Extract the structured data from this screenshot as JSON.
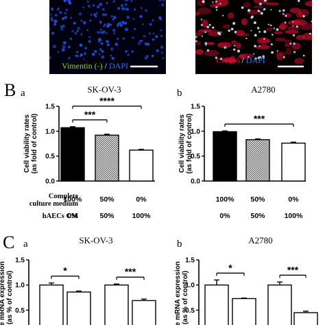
{
  "colors": {
    "dapi_blue": "#1e4fd8",
    "ck_red": "#c8102e",
    "vimentin_green": "#9bd22a",
    "black_bar": "#000000",
    "white_bar": "#ffffff",
    "hatch_bar": "#cfcfcf"
  },
  "panel_A": {
    "left_label_prefix": "Vimentin (-)",
    "left_label_sep": " / ",
    "left_label_suffix": "DAPI",
    "right_label_prefix": "CK",
    "right_label_mid": " (+)",
    "right_label_sep": " / ",
    "right_label_suffix": "DAPI"
  },
  "panel_B": {
    "letter": "B",
    "table_row1_label": [
      "Complete",
      "culture medium"
    ],
    "table_row2_label": "hAECs CM",
    "row1_values": [
      "100%",
      "50%",
      "0%"
    ],
    "row2_values": [
      "0%",
      "50%",
      "100%"
    ]
  },
  "panel_C": {
    "letter": "C"
  },
  "chart_data": [
    {
      "type": "bar",
      "sublabel": "a",
      "title": "SK-OV-3",
      "ylabel": [
        "Cell viability rates",
        "(as fold of control)"
      ],
      "ylim": [
        0,
        1.5
      ],
      "yticks": [
        "0.0",
        "0.5",
        "1.0",
        "1.5"
      ],
      "categories": [
        "100% / 0%",
        "50% / 50%",
        "0% / 100%"
      ],
      "values": [
        1.07,
        0.92,
        0.62
      ],
      "errors": [
        0.02,
        0.02,
        0.015
      ],
      "fills": [
        "black",
        "hatch",
        "white"
      ],
      "significance": [
        {
          "from": 0,
          "to": 1,
          "label": "***"
        },
        {
          "from": 0,
          "to": 2,
          "label": "****"
        }
      ]
    },
    {
      "type": "bar",
      "sublabel": "b",
      "title": "A2780",
      "ylabel": [
        "Cell viability rates",
        "(as fold of control)"
      ],
      "ylim": [
        0,
        1.5
      ],
      "yticks": [
        "0.0",
        "0.5",
        "1.0",
        "1.5"
      ],
      "categories": [
        "100% / 0%",
        "50% / 50%",
        "0% / 100%"
      ],
      "values": [
        0.99,
        0.83,
        0.76
      ],
      "errors": [
        0.015,
        0.015,
        0.02
      ],
      "fills": [
        "black",
        "hatch",
        "white"
      ],
      "significance": [
        {
          "from": 0,
          "to": 2,
          "label": "***"
        }
      ]
    },
    {
      "type": "bar",
      "sublabel": "a",
      "title": "SK-OV-3",
      "ylabel": [
        "tive mRNA expression",
        "(as % of control)"
      ],
      "ylim": [
        0,
        1.5
      ],
      "yticks": [
        "0.5",
        "1.0",
        "1.5"
      ],
      "groups": 2,
      "values": [
        1.0,
        0.86,
        1.0,
        0.69
      ],
      "errors": [
        0.04,
        0.02,
        0.02,
        0.03
      ],
      "fills": [
        "white",
        "white",
        "white",
        "white"
      ],
      "significance": [
        {
          "from": 0,
          "to": 1,
          "label": "*"
        },
        {
          "from": 2,
          "to": 3,
          "label": "***"
        }
      ]
    },
    {
      "type": "bar",
      "sublabel": "b",
      "title": "A2780",
      "ylabel": [
        "tive mRNA expression",
        "(as % of control)"
      ],
      "ylim": [
        0,
        1.5
      ],
      "yticks": [
        "0.5",
        "1.0",
        "1.5"
      ],
      "groups": 2,
      "values": [
        1.0,
        0.73,
        1.0,
        0.45
      ],
      "errors": [
        0.1,
        0.01,
        0.06,
        0.03
      ],
      "fills": [
        "white",
        "white",
        "white",
        "white"
      ],
      "significance": [
        {
          "from": 0,
          "to": 1,
          "label": "*"
        },
        {
          "from": 2,
          "to": 3,
          "label": "***"
        }
      ]
    }
  ]
}
